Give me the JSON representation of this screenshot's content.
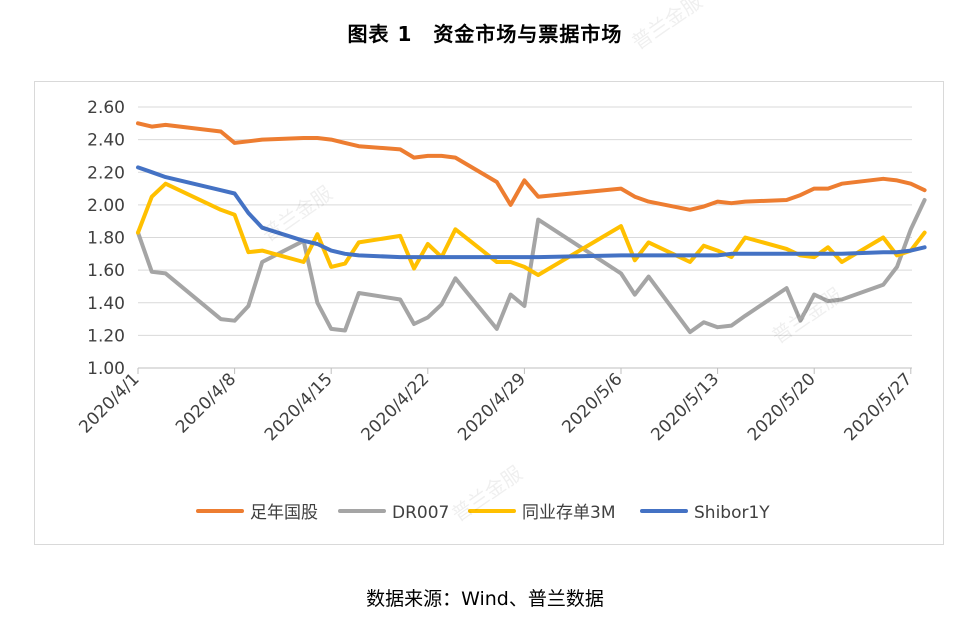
{
  "title": "图表 1　资金市场与票据市场",
  "source": "数据来源：Wind、普兰数据",
  "watermark": "普兰金服",
  "colors": {
    "足年国股": "#ED7D31",
    "DR007": "#A5A5A5",
    "同业存单3M": "#FFC000",
    "Shibor1Y": "#4472C4"
  },
  "chart_data": {
    "type": "line",
    "xlabel": "",
    "ylabel": "",
    "ylim": [
      1.0,
      2.6
    ],
    "y_ticks": [
      "2.60",
      "2.40",
      "2.20",
      "2.00",
      "1.80",
      "1.60",
      "1.40",
      "1.20",
      "1.00"
    ],
    "x_ticks": [
      "2020/4/1",
      "2020/4/8",
      "2020/4/15",
      "2020/4/22",
      "2020/4/29",
      "2020/5/6",
      "2020/5/13",
      "2020/5/20",
      "2020/5/27"
    ],
    "grid": "horizontal",
    "legend_position": "bottom",
    "x": [
      "2020/4/1",
      "2020/4/2",
      "2020/4/3",
      "2020/4/7",
      "2020/4/8",
      "2020/4/9",
      "2020/4/10",
      "2020/4/13",
      "2020/4/14",
      "2020/4/15",
      "2020/4/16",
      "2020/4/17",
      "2020/4/20",
      "2020/4/21",
      "2020/4/22",
      "2020/4/23",
      "2020/4/24",
      "2020/4/27",
      "2020/4/28",
      "2020/4/29",
      "2020/4/30",
      "2020/5/6",
      "2020/5/7",
      "2020/5/8",
      "2020/5/11",
      "2020/5/12",
      "2020/5/13",
      "2020/5/14",
      "2020/5/15",
      "2020/5/18",
      "2020/5/19",
      "2020/5/20",
      "2020/5/21",
      "2020/5/22",
      "2020/5/25",
      "2020/5/26",
      "2020/5/27",
      "2020/5/28"
    ],
    "series": [
      {
        "name": "足年国股",
        "values": [
          2.5,
          2.48,
          2.49,
          2.45,
          2.38,
          2.39,
          2.4,
          2.41,
          2.41,
          2.4,
          2.38,
          2.36,
          2.34,
          2.29,
          2.3,
          2.3,
          2.29,
          2.14,
          2.0,
          2.15,
          2.05,
          2.1,
          2.05,
          2.02,
          1.97,
          1.99,
          2.02,
          2.01,
          2.02,
          2.03,
          2.06,
          2.1,
          2.1,
          2.13,
          2.16,
          2.15,
          2.13,
          2.09
        ]
      },
      {
        "name": "DR007",
        "values": [
          1.83,
          1.59,
          1.58,
          1.3,
          1.29,
          1.38,
          1.65,
          1.78,
          1.4,
          1.24,
          1.23,
          1.46,
          1.42,
          1.27,
          1.31,
          1.39,
          1.55,
          1.24,
          1.45,
          1.38,
          1.91,
          1.58,
          1.45,
          1.56,
          1.22,
          1.28,
          1.25,
          1.26,
          1.32,
          1.49,
          1.29,
          1.45,
          1.41,
          1.42,
          1.51,
          1.62,
          1.85,
          2.03
        ]
      },
      {
        "name": "同业存单3M",
        "values": [
          1.83,
          2.05,
          2.13,
          1.97,
          1.94,
          1.71,
          1.72,
          1.65,
          1.82,
          1.62,
          1.64,
          1.77,
          1.81,
          1.61,
          1.76,
          1.68,
          1.85,
          1.65,
          1.65,
          1.62,
          1.57,
          1.87,
          1.66,
          1.77,
          1.65,
          1.75,
          1.72,
          1.68,
          1.8,
          1.73,
          1.69,
          1.68,
          1.74,
          1.65,
          1.8,
          1.69,
          1.72,
          1.83
        ]
      },
      {
        "name": "Shibor1Y",
        "values": [
          2.23,
          2.2,
          2.17,
          2.09,
          2.07,
          1.95,
          1.86,
          1.78,
          1.76,
          1.72,
          1.7,
          1.69,
          1.68,
          1.68,
          1.68,
          1.68,
          1.68,
          1.68,
          1.68,
          1.68,
          1.68,
          1.69,
          1.69,
          1.69,
          1.69,
          1.69,
          1.69,
          1.7,
          1.7,
          1.7,
          1.7,
          1.7,
          1.7,
          1.7,
          1.71,
          1.71,
          1.72,
          1.74
        ]
      }
    ]
  }
}
